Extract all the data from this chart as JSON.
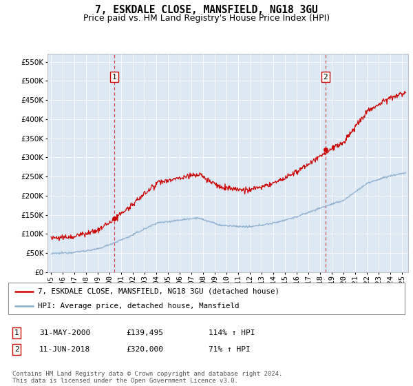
{
  "title": "7, ESKDALE CLOSE, MANSFIELD, NG18 3GU",
  "subtitle": "Price paid vs. HM Land Registry's House Price Index (HPI)",
  "ytick_values": [
    0,
    50000,
    100000,
    150000,
    200000,
    250000,
    300000,
    350000,
    400000,
    450000,
    500000,
    550000
  ],
  "ylim": [
    0,
    570000
  ],
  "xlim_start": 1994.7,
  "xlim_end": 2025.5,
  "background_color": "#dce9f5",
  "outer_bg_color": "#ffffff",
  "grid_color": "#ffffff",
  "red_line_color": "#cc0000",
  "blue_line_color": "#88aacc",
  "vline_color": "#cc0000",
  "marker1_date": 2000.41,
  "marker1_value": 139495,
  "marker2_date": 2018.44,
  "marker2_value": 320000,
  "legend_red_label": "7, ESKDALE CLOSE, MANSFIELD, NG18 3GU (detached house)",
  "legend_blue_label": "HPI: Average price, detached house, Mansfield",
  "footer": "Contains HM Land Registry data © Crown copyright and database right 2024.\nThis data is licensed under the Open Government Licence v3.0.",
  "title_fontsize": 10.5,
  "subtitle_fontsize": 9,
  "tick_fontsize": 7.5,
  "legend_fontsize": 8,
  "annot_fontsize": 8
}
